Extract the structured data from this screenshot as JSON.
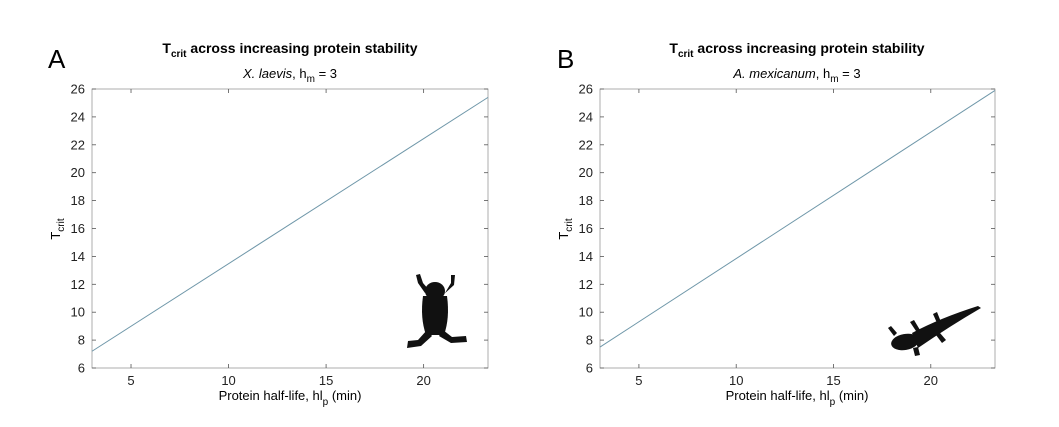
{
  "chart_data": [
    {
      "panel_label": "A",
      "type": "line",
      "title": {
        "main": "T",
        "sub": "crit",
        "rest": " across increasing protein stability"
      },
      "subtitle": {
        "italic": "X. laevis",
        "sep": ", h",
        "sub": "m",
        "rest": " = 3"
      },
      "xlabel": {
        "main": "Protein half-life, hl",
        "sub": "p",
        "rest": " (min)"
      },
      "ylabel": {
        "main": "T",
        "sub": "crit"
      },
      "xlim": [
        3,
        23.3
      ],
      "ylim": [
        6,
        26
      ],
      "xticks": [
        5,
        10,
        15,
        20
      ],
      "yticks": [
        6,
        8,
        10,
        12,
        14,
        16,
        18,
        20,
        22,
        24,
        26
      ],
      "series": [
        {
          "x": [
            3,
            23.3
          ],
          "y": [
            7.2,
            25.4
          ]
        }
      ],
      "line_color": "#6f97a9",
      "silhouette": "frog-icon",
      "grid": false
    },
    {
      "panel_label": "B",
      "type": "line",
      "title": {
        "main": "T",
        "sub": "crit",
        "rest": " across increasing protein stability"
      },
      "subtitle": {
        "italic": "A. mexicanum",
        "sep": ", h",
        "sub": "m",
        "rest": " = 3"
      },
      "xlabel": {
        "main": "Protein half-life, hl",
        "sub": "p",
        "rest": " (min)"
      },
      "ylabel": {
        "main": "T",
        "sub": "crit"
      },
      "xlim": [
        3,
        23.3
      ],
      "ylim": [
        6,
        26
      ],
      "xticks": [
        5,
        10,
        15,
        20
      ],
      "yticks": [
        6,
        8,
        10,
        12,
        14,
        16,
        18,
        20,
        22,
        24,
        26
      ],
      "series": [
        {
          "x": [
            3,
            23.3
          ],
          "y": [
            7.5,
            25.9
          ]
        }
      ],
      "line_color": "#6f97a9",
      "silhouette": "axolotl-icon",
      "grid": false
    }
  ]
}
